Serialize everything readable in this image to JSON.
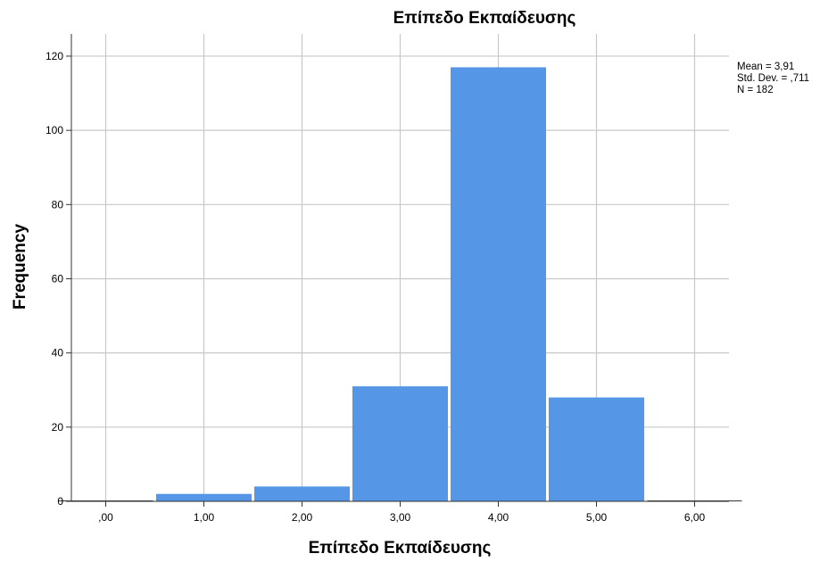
{
  "chart_data": {
    "type": "bar",
    "title": "Επίπεδο Εκπαίδευσης",
    "xlabel": "Επίπεδο Εκπαίδευσης",
    "ylabel": "Frequency",
    "x_ticks": [
      ",00",
      "1,00",
      "2,00",
      "3,00",
      "4,00",
      "5,00",
      "6,00"
    ],
    "x_tick_values": [
      0,
      1,
      2,
      3,
      4,
      5,
      6
    ],
    "y_ticks": [
      "0",
      "20",
      "40",
      "60",
      "80",
      "100",
      "120"
    ],
    "y_tick_values": [
      0,
      20,
      40,
      60,
      80,
      100,
      120
    ],
    "xlim": [
      -0.35,
      6.35
    ],
    "ylim": [
      0,
      126
    ],
    "bins": [
      {
        "center": 0,
        "value": 0
      },
      {
        "center": 1,
        "value": 2
      },
      {
        "center": 2,
        "value": 4
      },
      {
        "center": 3,
        "value": 31
      },
      {
        "center": 4,
        "value": 117
      },
      {
        "center": 5,
        "value": 28
      },
      {
        "center": 6,
        "value": 0
      }
    ],
    "bin_width": 1,
    "bar_color": "#5596E6",
    "grid": true,
    "stats": [
      "Mean = 3,91",
      "Std. Dev. = ,711",
      "N = 182"
    ]
  }
}
